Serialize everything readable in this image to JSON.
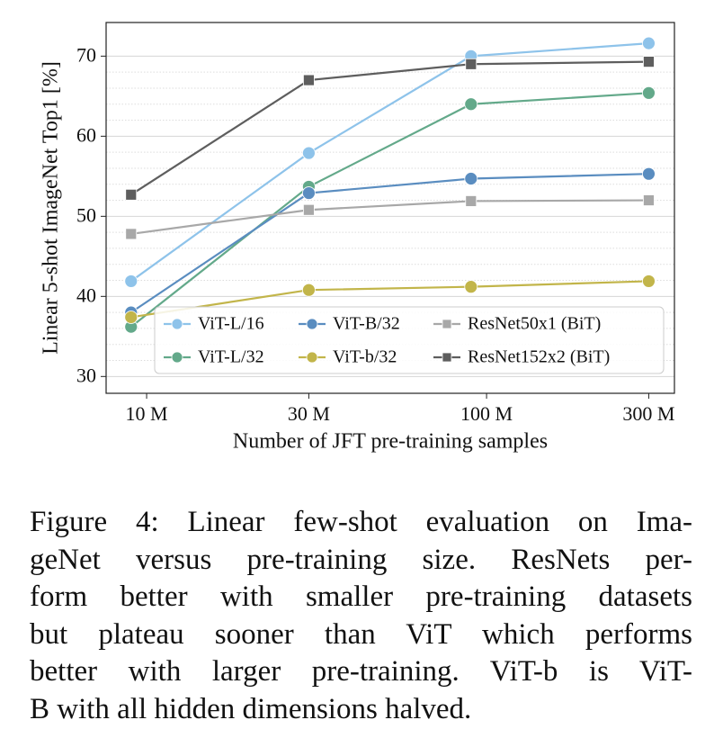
{
  "chart_data": {
    "type": "line",
    "ylabel": "Linear 5-shot ImageNet Top1 [%]",
    "xlabel": "Number of JFT pre-training samples",
    "x": [
      9,
      30,
      90,
      300
    ],
    "xscale": "log",
    "xlim": [
      7.6,
      357
    ],
    "xticks": [
      {
        "value": 10,
        "label": "10 M"
      },
      {
        "value": 30,
        "label": "30 M"
      },
      {
        "value": 100,
        "label": "100 M"
      },
      {
        "value": 300,
        "label": "300 M"
      }
    ],
    "ylim": [
      27.9,
      74.2
    ],
    "yticks": [
      30,
      40,
      50,
      60,
      70
    ],
    "grid": true,
    "legend": "lower right",
    "series": [
      {
        "name": "ViT-L/16",
        "color": "#8ec3ea",
        "marker": "circle",
        "values": [
          41.9,
          57.9,
          70.0,
          71.6
        ]
      },
      {
        "name": "ViT-L/32",
        "color": "#63a98a",
        "marker": "circle",
        "values": [
          36.2,
          53.7,
          64.0,
          65.4
        ]
      },
      {
        "name": "ViT-B/32",
        "color": "#5a8dc0",
        "marker": "circle",
        "values": [
          38.0,
          52.9,
          54.7,
          55.3
        ]
      },
      {
        "name": "ViT-b/32",
        "color": "#c2b54a",
        "marker": "circle",
        "values": [
          37.4,
          40.8,
          41.2,
          41.9
        ]
      },
      {
        "name": "ResNet50x1 (BiT)",
        "color": "#a8a8a8",
        "marker": "square",
        "values": [
          47.8,
          50.8,
          51.9,
          52.0
        ]
      },
      {
        "name": "ResNet152x2 (BiT)",
        "color": "#5e5e5e",
        "marker": "square",
        "values": [
          52.7,
          67.0,
          69.0,
          69.3
        ]
      }
    ]
  },
  "caption": {
    "lines": [
      "Figure 4: Linear few-shot evaluation on Ima-",
      "geNet versus pre-training size. ResNets per-",
      "form better with smaller pre-training datasets",
      "but plateau sooner than ViT which performs",
      "better with larger pre-training. ViT-b is ViT-",
      "B with all hidden dimensions halved."
    ]
  }
}
